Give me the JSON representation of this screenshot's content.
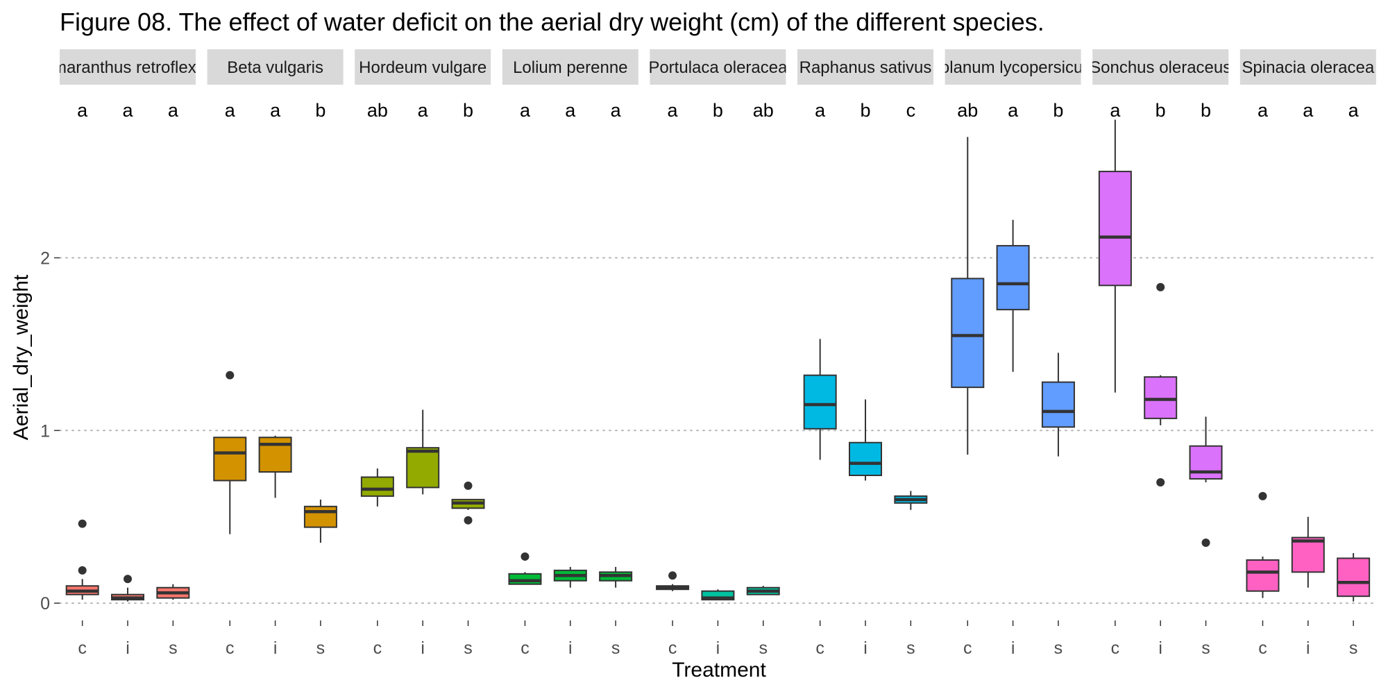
{
  "chart_data": {
    "type": "box",
    "title": "Figure 08. The effect of water deficit  on the aerial dry weight (cm) of the different species.",
    "xlabel": "Treatment",
    "ylabel": "Aerial_dry_weight",
    "ylim": [
      -0.1,
      2.85
    ],
    "yticks": [
      0,
      1,
      2
    ],
    "grid": "horizontal dotted at major ticks",
    "x_categories": [
      "c",
      "i",
      "s"
    ],
    "facets": [
      {
        "label": "Amaranthus retroflexus",
        "color": "#F8766D",
        "letters": [
          "a",
          "a",
          "a"
        ],
        "boxes": [
          {
            "min": 0.02,
            "q1": 0.05,
            "median": 0.07,
            "q3": 0.1,
            "max": 0.14,
            "outliers": [
              0.46,
              0.19
            ]
          },
          {
            "min": 0.01,
            "q1": 0.02,
            "median": 0.03,
            "q3": 0.05,
            "max": 0.09,
            "outliers": [
              0.14
            ]
          },
          {
            "min": 0.02,
            "q1": 0.03,
            "median": 0.06,
            "q3": 0.09,
            "max": 0.11,
            "outliers": []
          }
        ]
      },
      {
        "label": "Beta vulgaris",
        "color": "#D39200",
        "letters": [
          "a",
          "a",
          "b"
        ],
        "boxes": [
          {
            "min": 0.4,
            "q1": 0.71,
            "median": 0.87,
            "q3": 0.96,
            "max": 0.96,
            "outliers": [
              1.32
            ]
          },
          {
            "min": 0.61,
            "q1": 0.76,
            "median": 0.92,
            "q3": 0.96,
            "max": 0.97,
            "outliers": []
          },
          {
            "min": 0.35,
            "q1": 0.44,
            "median": 0.53,
            "q3": 0.56,
            "max": 0.6,
            "outliers": []
          }
        ]
      },
      {
        "label": "Hordeum vulgare",
        "color": "#93AA00",
        "letters": [
          "ab",
          "a",
          "b"
        ],
        "boxes": [
          {
            "min": 0.56,
            "q1": 0.62,
            "median": 0.66,
            "q3": 0.73,
            "max": 0.78,
            "outliers": []
          },
          {
            "min": 0.63,
            "q1": 0.67,
            "median": 0.88,
            "q3": 0.9,
            "max": 1.12,
            "outliers": []
          },
          {
            "min": 0.54,
            "q1": 0.55,
            "median": 0.58,
            "q3": 0.6,
            "max": 0.6,
            "outliers": [
              0.68,
              0.48
            ]
          }
        ]
      },
      {
        "label": "Lolium perenne",
        "color": "#00BA38",
        "letters": [
          "a",
          "a",
          "a"
        ],
        "boxes": [
          {
            "min": 0.11,
            "q1": 0.11,
            "median": 0.13,
            "q3": 0.17,
            "max": 0.18,
            "outliers": [
              0.27
            ]
          },
          {
            "min": 0.09,
            "q1": 0.13,
            "median": 0.16,
            "q3": 0.19,
            "max": 0.21,
            "outliers": []
          },
          {
            "min": 0.09,
            "q1": 0.13,
            "median": 0.16,
            "q3": 0.18,
            "max": 0.21,
            "outliers": []
          }
        ]
      },
      {
        "label": "Portulaca oleracea",
        "color": "#00C19F",
        "letters": [
          "a",
          "b",
          "ab"
        ],
        "boxes": [
          {
            "min": 0.07,
            "q1": 0.08,
            "median": 0.09,
            "q3": 0.1,
            "max": 0.11,
            "outliers": [
              0.16
            ]
          },
          {
            "min": 0.02,
            "q1": 0.02,
            "median": 0.03,
            "q3": 0.07,
            "max": 0.08,
            "outliers": []
          },
          {
            "min": 0.05,
            "q1": 0.05,
            "median": 0.07,
            "q3": 0.09,
            "max": 0.1,
            "outliers": []
          }
        ]
      },
      {
        "label": "Raphanus sativus",
        "color": "#00B9E3",
        "letters": [
          "a",
          "b",
          "c"
        ],
        "boxes": [
          {
            "min": 0.83,
            "q1": 1.01,
            "median": 1.15,
            "q3": 1.32,
            "max": 1.53,
            "outliers": []
          },
          {
            "min": 0.71,
            "q1": 0.74,
            "median": 0.81,
            "q3": 0.93,
            "max": 1.18,
            "outliers": []
          },
          {
            "min": 0.54,
            "q1": 0.58,
            "median": 0.6,
            "q3": 0.62,
            "max": 0.65,
            "outliers": []
          }
        ]
      },
      {
        "label": "Solanum lycopersicum",
        "color": "#619CFF",
        "letters": [
          "ab",
          "a",
          "b"
        ],
        "boxes": [
          {
            "min": 0.86,
            "q1": 1.25,
            "median": 1.55,
            "q3": 1.88,
            "max": 2.7,
            "outliers": []
          },
          {
            "min": 1.34,
            "q1": 1.7,
            "median": 1.85,
            "q3": 2.07,
            "max": 2.22,
            "outliers": []
          },
          {
            "min": 0.85,
            "q1": 1.02,
            "median": 1.11,
            "q3": 1.28,
            "max": 1.45,
            "outliers": []
          }
        ]
      },
      {
        "label": "Sonchus oleraceus",
        "color": "#DB72FB",
        "letters": [
          "a",
          "b",
          "b"
        ],
        "boxes": [
          {
            "min": 1.22,
            "q1": 1.84,
            "median": 2.12,
            "q3": 2.5,
            "max": 2.8,
            "outliers": []
          },
          {
            "min": 1.03,
            "q1": 1.07,
            "median": 1.18,
            "q3": 1.31,
            "max": 1.32,
            "outliers": [
              1.83,
              0.7
            ]
          },
          {
            "min": 0.7,
            "q1": 0.72,
            "median": 0.76,
            "q3": 0.91,
            "max": 1.08,
            "outliers": [
              0.35
            ]
          }
        ]
      },
      {
        "label": "Spinacia oleracea",
        "color": "#FF61C3",
        "letters": [
          "a",
          "a",
          "a"
        ],
        "boxes": [
          {
            "min": 0.03,
            "q1": 0.07,
            "median": 0.18,
            "q3": 0.25,
            "max": 0.27,
            "outliers": [
              0.62
            ]
          },
          {
            "min": 0.09,
            "q1": 0.18,
            "median": 0.36,
            "q3": 0.38,
            "max": 0.5,
            "outliers": []
          },
          {
            "min": 0.01,
            "q1": 0.04,
            "median": 0.12,
            "q3": 0.26,
            "max": 0.29,
            "outliers": []
          }
        ]
      }
    ]
  }
}
